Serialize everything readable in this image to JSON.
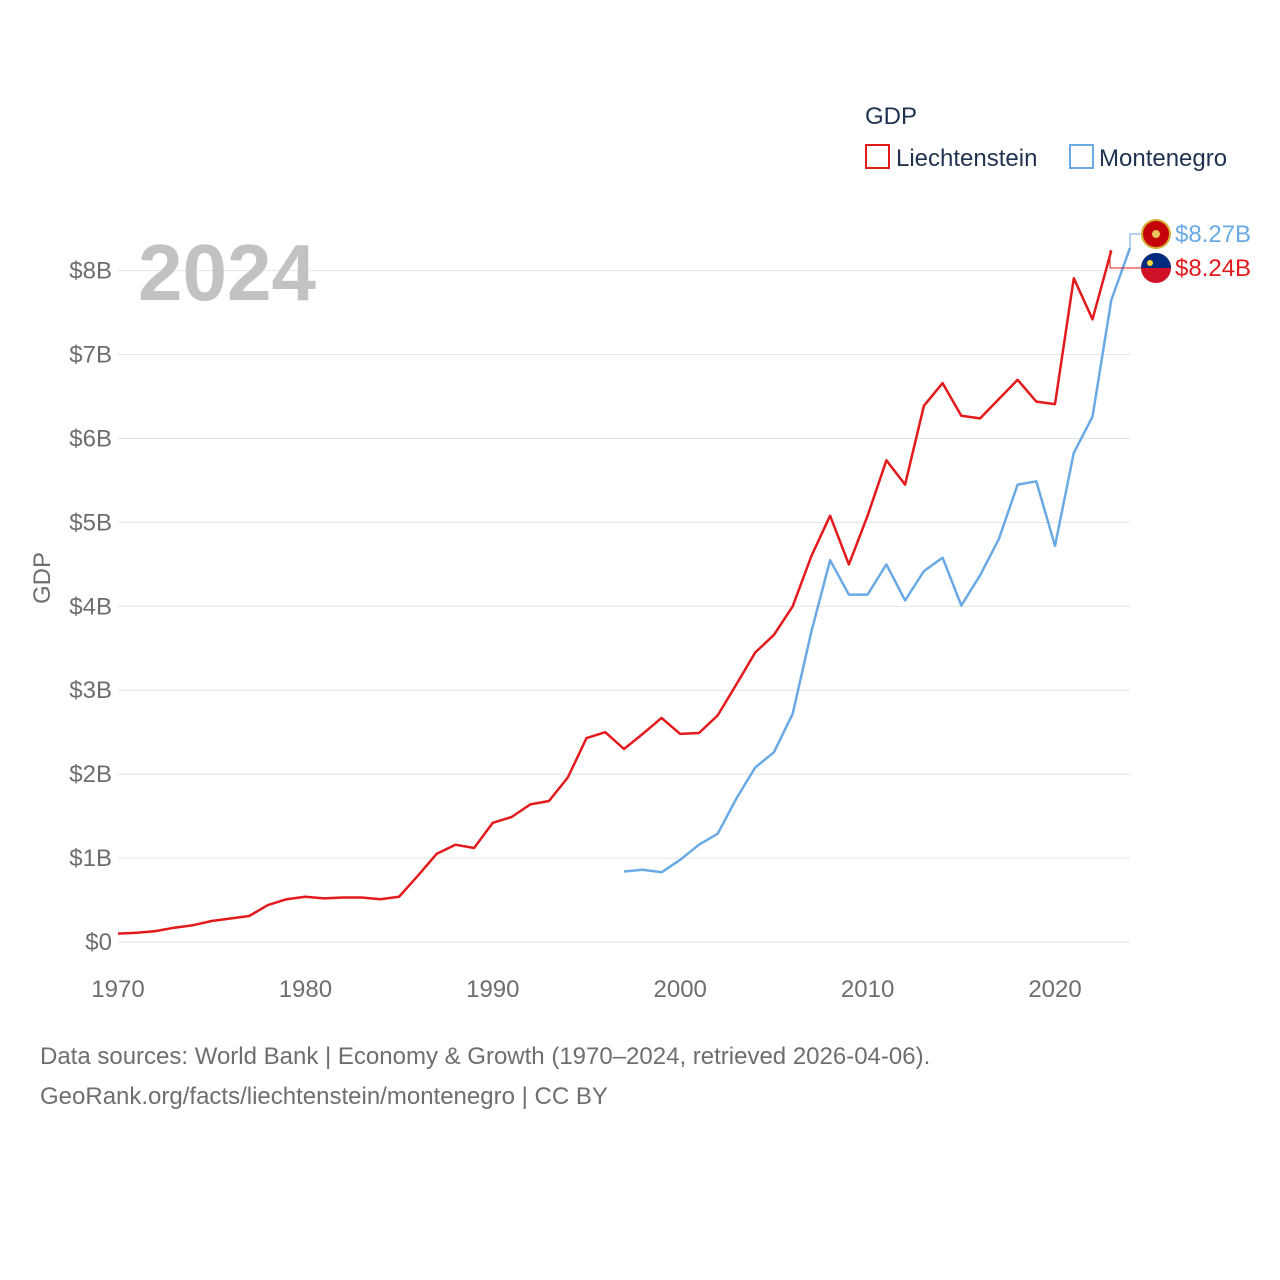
{
  "chart_data": {
    "type": "line",
    "ylabel": "GDP",
    "year_label": "2024",
    "legend_title": "GDP",
    "ylim": [
      0,
      8.27
    ],
    "xlim": [
      1970,
      2024
    ],
    "x_ticks": [
      1970,
      1980,
      1990,
      2000,
      2010,
      2020
    ],
    "y_ticks": [
      {
        "value": 0,
        "label": "$0"
      },
      {
        "value": 1,
        "label": "$1B"
      },
      {
        "value": 2,
        "label": "$2B"
      },
      {
        "value": 3,
        "label": "$3B"
      },
      {
        "value": 4,
        "label": "$4B"
      },
      {
        "value": 5,
        "label": "$5B"
      },
      {
        "value": 6,
        "label": "$6B"
      },
      {
        "value": 7,
        "label": "$7B"
      },
      {
        "value": 8,
        "label": "$8B"
      }
    ],
    "series": [
      {
        "name": "Liechtenstein",
        "color": "#e31a1c",
        "end_label": "$8.24B",
        "flag": "liechtenstein-flag",
        "x": [
          1970,
          1971,
          1972,
          1973,
          1974,
          1975,
          1976,
          1977,
          1978,
          1979,
          1980,
          1981,
          1982,
          1983,
          1984,
          1985,
          1986,
          1987,
          1988,
          1989,
          1990,
          1991,
          1992,
          1993,
          1994,
          1995,
          1996,
          1997,
          1998,
          1999,
          2000,
          2001,
          2002,
          2003,
          2004,
          2005,
          2006,
          2007,
          2008,
          2009,
          2010,
          2011,
          2012,
          2013,
          2014,
          2015,
          2016,
          2017,
          2018,
          2019,
          2020,
          2021,
          2022,
          2023
        ],
        "values": [
          0.1,
          0.11,
          0.13,
          0.17,
          0.2,
          0.25,
          0.28,
          0.31,
          0.44,
          0.51,
          0.54,
          0.52,
          0.53,
          0.53,
          0.51,
          0.54,
          0.79,
          1.05,
          1.16,
          1.12,
          1.42,
          1.49,
          1.64,
          1.68,
          1.96,
          2.43,
          2.5,
          2.3,
          2.48,
          2.67,
          2.48,
          2.49,
          2.7,
          3.07,
          3.45,
          3.66,
          4.0,
          4.6,
          5.08,
          4.5,
          5.08,
          5.74,
          5.45,
          6.39,
          6.66,
          6.27,
          6.24,
          6.47,
          6.7,
          6.44,
          6.41,
          7.91,
          7.42,
          8.24
        ]
      },
      {
        "name": "Montenegro",
        "color": "#6aaae4",
        "end_label": "$8.27B",
        "flag": "montenegro-flag",
        "x": [
          1997,
          1998,
          1999,
          2000,
          2001,
          2002,
          2003,
          2004,
          2005,
          2006,
          2007,
          2008,
          2009,
          2010,
          2011,
          2012,
          2013,
          2014,
          2015,
          2016,
          2017,
          2018,
          2019,
          2020,
          2021,
          2022,
          2023,
          2024
        ],
        "values": [
          0.84,
          0.86,
          0.83,
          0.98,
          1.16,
          1.29,
          1.71,
          2.08,
          2.26,
          2.72,
          3.7,
          4.55,
          4.14,
          4.14,
          4.5,
          4.07,
          4.42,
          4.58,
          4.01,
          4.37,
          4.8,
          5.45,
          5.49,
          4.72,
          5.83,
          6.26,
          7.65,
          8.27
        ]
      }
    ]
  },
  "footer": {
    "line1": "Data sources: World Bank | Economy & Growth (1970–2024, retrieved 2026-04-06).",
    "line2": "GeoRank.org/facts/liechtenstein/montenegro | CC BY"
  }
}
